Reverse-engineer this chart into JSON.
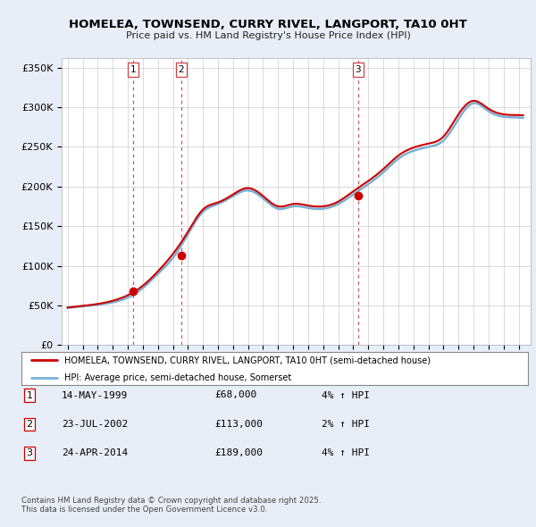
{
  "title": "HOMELEA, TOWNSEND, CURRY RIVEL, LANGPORT, TA10 0HT",
  "subtitle": "Price paid vs. HM Land Registry's House Price Index (HPI)",
  "ylabel_ticks": [
    "£0",
    "£50K",
    "£100K",
    "£150K",
    "£200K",
    "£250K",
    "£300K",
    "£350K"
  ],
  "y_values": [
    0,
    50000,
    100000,
    150000,
    200000,
    250000,
    300000,
    350000
  ],
  "ylim": [
    0,
    362000
  ],
  "sale_dates": [
    1999.37,
    2002.56,
    2014.32
  ],
  "sale_prices": [
    68000,
    113000,
    189000
  ],
  "sale_labels": [
    "1",
    "2",
    "3"
  ],
  "legend_line1": "HOMELEA, TOWNSEND, CURRY RIVEL, LANGPORT, TA10 0HT (semi-detached house)",
  "legend_line2": "HPI: Average price, semi-detached house, Somerset",
  "table_rows": [
    [
      "1",
      "14-MAY-1999",
      "£68,000",
      "4% ↑ HPI"
    ],
    [
      "2",
      "23-JUL-2002",
      "£113,000",
      "2% ↑ HPI"
    ],
    [
      "3",
      "24-APR-2014",
      "£189,000",
      "4% ↑ HPI"
    ]
  ],
  "footnote": "Contains HM Land Registry data © Crown copyright and database right 2025.\nThis data is licensed under the Open Government Licence v3.0.",
  "line_color_red": "#cc0000",
  "line_color_blue": "#7ab0d4",
  "dashed_color": "#cc4444",
  "bg_color": "#e8eef8",
  "plot_bg": "#ffffff",
  "grid_color": "#cccccc",
  "xlim_start": 1994.6,
  "xlim_end": 2025.8,
  "hpi_years": [
    1995,
    1996,
    1997,
    1998,
    1999,
    2000,
    2001,
    2002,
    2003,
    2004,
    2005,
    2006,
    2007,
    2008,
    2009,
    2010,
    2011,
    2012,
    2013,
    2014,
    2015,
    2016,
    2017,
    2018,
    2019,
    2020,
    2021,
    2022,
    2023,
    2024,
    2025
  ],
  "hpi_vals": [
    47000,
    49000,
    51000,
    54000,
    60000,
    72000,
    90000,
    110000,
    140000,
    168000,
    178000,
    188000,
    195000,
    185000,
    172000,
    175000,
    173000,
    172000,
    178000,
    190000,
    203000,
    218000,
    235000,
    245000,
    250000,
    258000,
    285000,
    305000,
    295000,
    288000,
    287000
  ],
  "prop_years": [
    1995,
    1996,
    1997,
    1998,
    1999,
    2000,
    2001,
    2002,
    2003,
    2004,
    2005,
    2006,
    2007,
    2008,
    2009,
    2010,
    2011,
    2012,
    2013,
    2014,
    2015,
    2016,
    2017,
    2018,
    2019,
    2020,
    2021,
    2022,
    2023,
    2024,
    2025
  ],
  "prop_vals": [
    47500,
    49500,
    52000,
    56000,
    63000,
    75000,
    93000,
    115000,
    143000,
    171000,
    180000,
    190000,
    198000,
    188000,
    175000,
    178000,
    176000,
    175000,
    181000,
    194000,
    207000,
    222000,
    239000,
    249000,
    254000,
    263000,
    291000,
    308000,
    298000,
    291000,
    290000
  ]
}
